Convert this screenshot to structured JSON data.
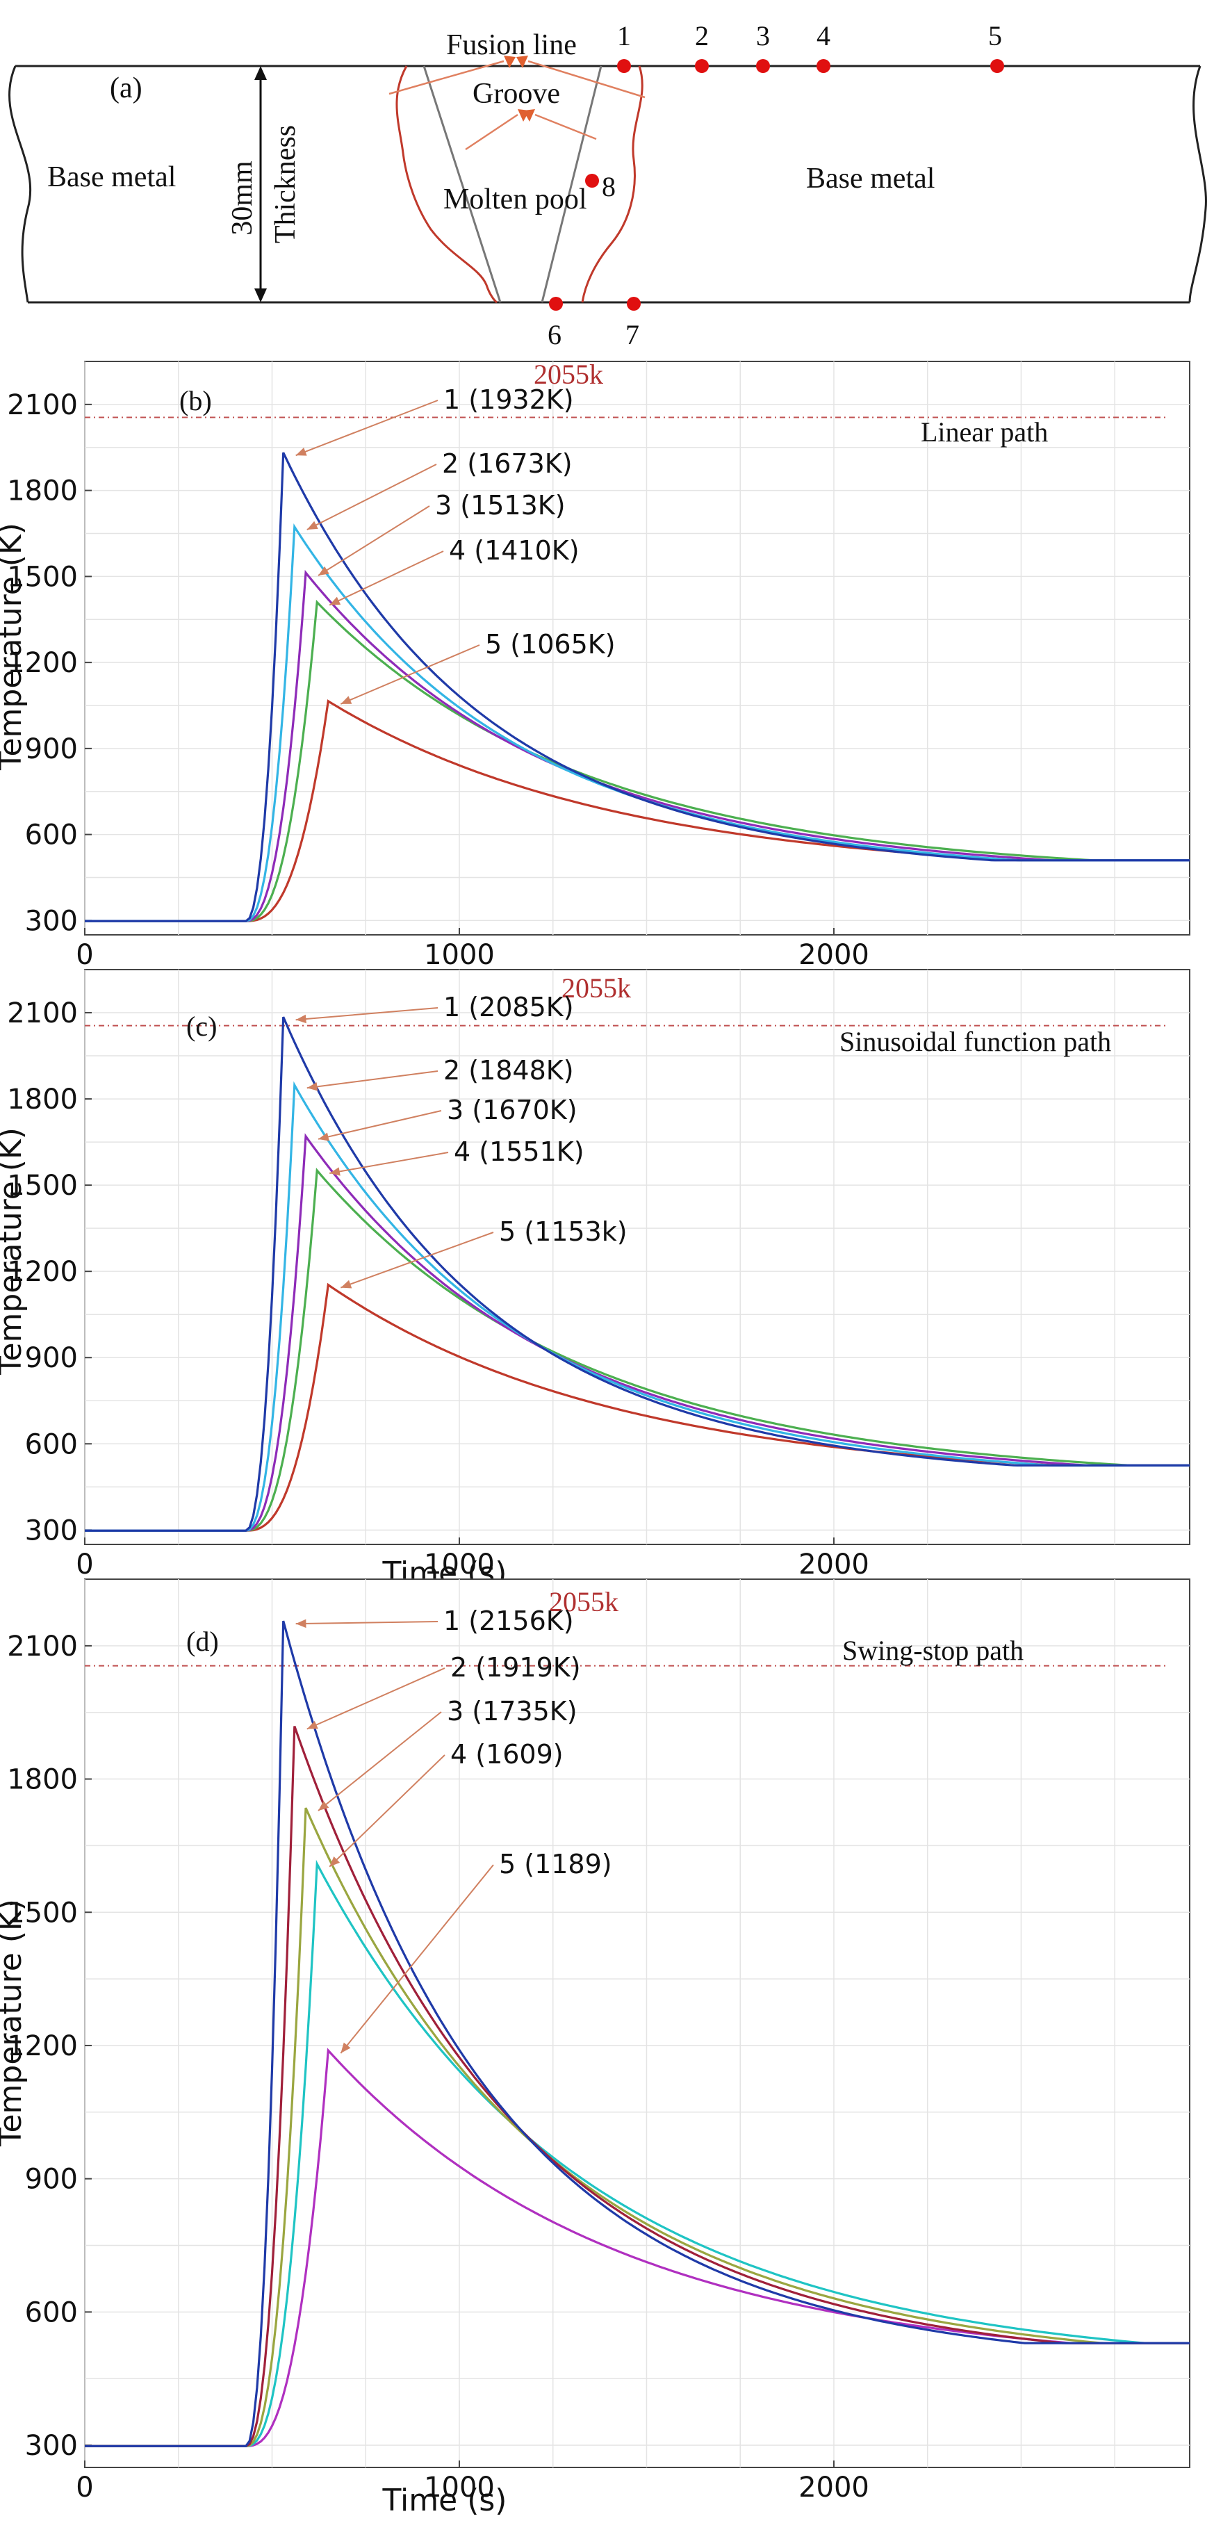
{
  "diagram": {
    "panel_label": "(a)",
    "labels": {
      "base_metal_left": "Base metal",
      "base_metal_right": "Base metal",
      "thickness_value": "30mm",
      "thickness_label": "Thickness",
      "fusion_line": "Fusion line",
      "groove": "Groove",
      "molten_pool": "Molten  pool"
    },
    "points": [
      "1",
      "2",
      "3",
      "4",
      "5",
      "6",
      "7",
      "8"
    ],
    "colors": {
      "point": "#e01010",
      "fusion_line": "#c0392b",
      "groove": "#777777",
      "arrow": "#e08060"
    }
  },
  "chart_data": [
    {
      "type": "line",
      "panel": "(b)",
      "title": "Linear path",
      "xlabel": "",
      "ylabel": "Temperature (K)",
      "xlim": [
        0,
        2950
      ],
      "ylim": [
        250,
        2250
      ],
      "xticks": [
        0,
        1000,
        2000
      ],
      "yticks": [
        300,
        600,
        900,
        1200,
        1500,
        1800,
        2100
      ],
      "reference": {
        "value": 2055,
        "label": "2055k"
      },
      "series": [
        {
          "name": "1",
          "label": "1 (1932K)",
          "peak": 1932,
          "color": "#1f3aa8"
        },
        {
          "name": "2",
          "label": "2 (1673K)",
          "peak": 1673,
          "color": "#33b5e5"
        },
        {
          "name": "3",
          "label": "3 (1513K)",
          "peak": 1513,
          "color": "#8e2bb8"
        },
        {
          "name": "4",
          "label": "4 (1410K)",
          "peak": 1410,
          "color": "#4caf50"
        },
        {
          "name": "5",
          "label": "5 (1065K)",
          "peak": 1065,
          "color": "#c0392b"
        }
      ],
      "end_value": 515
    },
    {
      "type": "line",
      "panel": "(c)",
      "title": "Sinusoidal function path",
      "xlabel": "Time (s)",
      "ylabel": "Temperature (K)",
      "xlim": [
        0,
        2950
      ],
      "ylim": [
        250,
        2250
      ],
      "xticks": [
        0,
        1000,
        2000
      ],
      "yticks": [
        300,
        600,
        900,
        1200,
        1500,
        1800,
        2100
      ],
      "reference": {
        "value": 2055,
        "label": "2055k"
      },
      "series": [
        {
          "name": "1",
          "label": "1 (2085K)",
          "peak": 2085,
          "color": "#1f3aa8"
        },
        {
          "name": "2",
          "label": "2 (1848K)",
          "peak": 1848,
          "color": "#33b5e5"
        },
        {
          "name": "3",
          "label": "3 (1670K)",
          "peak": 1670,
          "color": "#8e2bb8"
        },
        {
          "name": "4",
          "label": "4 (1551K)",
          "peak": 1551,
          "color": "#4caf50"
        },
        {
          "name": "5",
          "label": "5 (1153k)",
          "peak": 1153,
          "color": "#c0392b"
        }
      ],
      "end_value": 530
    },
    {
      "type": "line",
      "panel": "(d)",
      "title": "Swing-stop path",
      "xlabel": "Time (s)",
      "ylabel": "Temperature (K)",
      "xlim": [
        0,
        2950
      ],
      "ylim": [
        250,
        2250
      ],
      "xticks": [
        0,
        1000,
        2000
      ],
      "yticks": [
        300,
        600,
        900,
        1200,
        1500,
        1800,
        2100
      ],
      "reference": {
        "value": 2055,
        "label": "2055k"
      },
      "series": [
        {
          "name": "1",
          "label": "1 (2156K)",
          "peak": 2156,
          "color": "#1f3aa8"
        },
        {
          "name": "2",
          "label": "2 (1919K)",
          "peak": 1919,
          "color": "#a0203a"
        },
        {
          "name": "3",
          "label": "3 (1735K)",
          "peak": 1735,
          "color": "#9aa640"
        },
        {
          "name": "4",
          "label": "4 (1609)",
          "peak": 1609,
          "color": "#1fc4c4"
        },
        {
          "name": "5",
          "label": "5 (1189)",
          "peak": 1189,
          "color": "#b030c0"
        }
      ],
      "end_value": 535
    }
  ]
}
